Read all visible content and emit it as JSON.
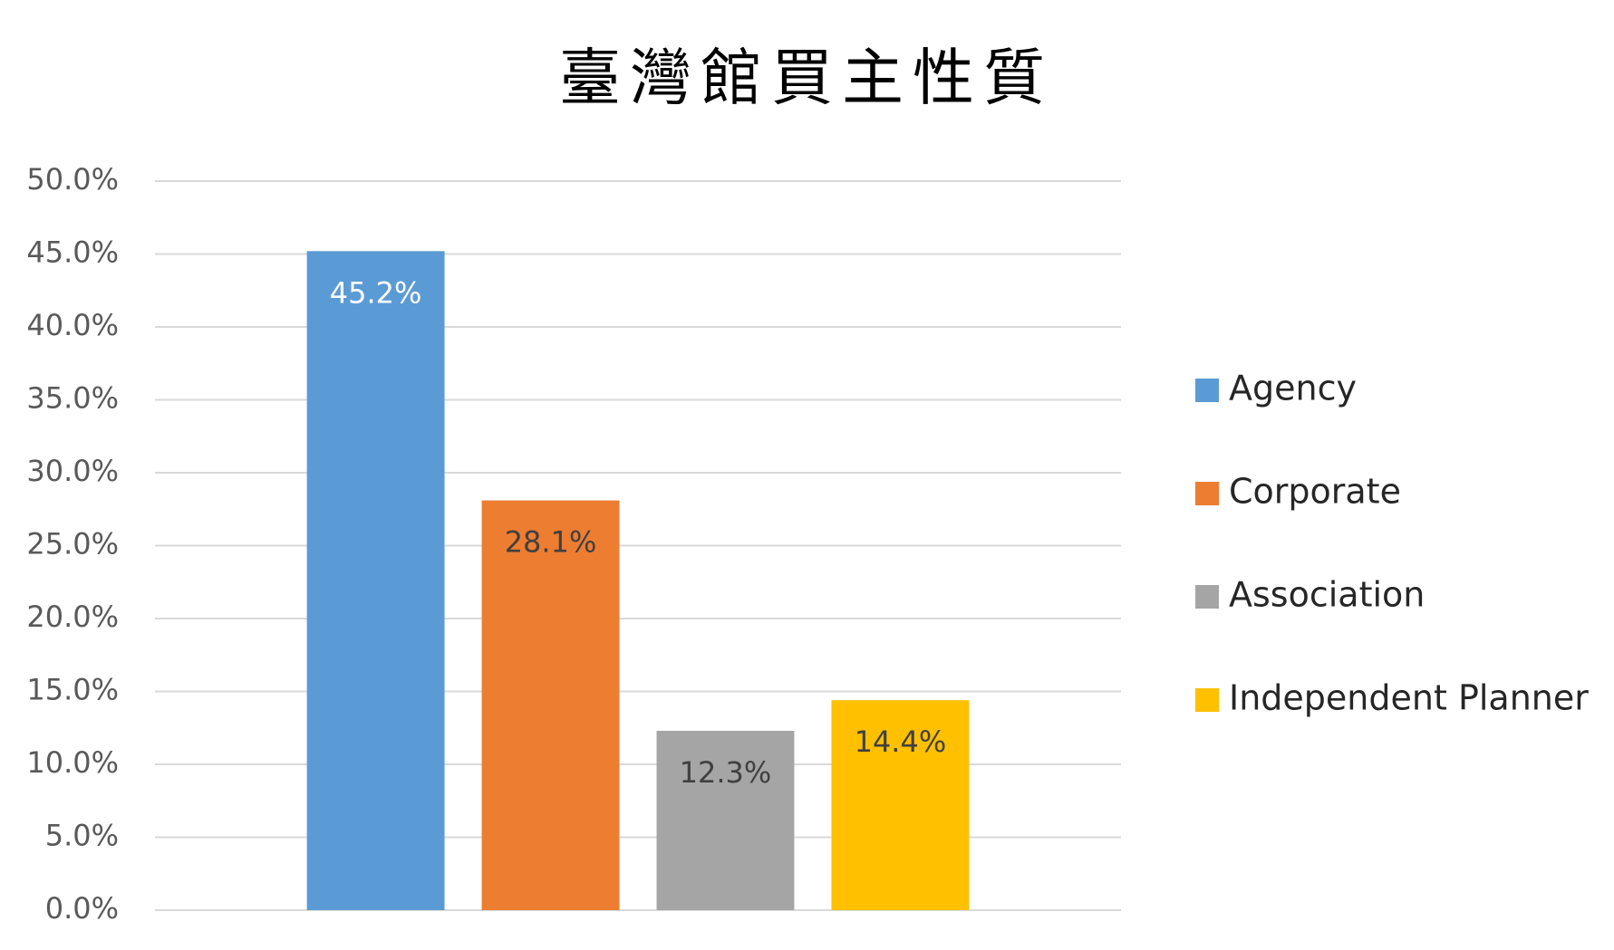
{
  "chart_data": {
    "type": "bar",
    "title": "臺灣館買主性質",
    "categories": [
      null
    ],
    "series": [
      {
        "name": "Agency",
        "color": "#5b9bd5",
        "label_color": "#ffffff",
        "values": [
          45.2
        ],
        "value_labels": [
          "45.2%"
        ]
      },
      {
        "name": "Corporate",
        "color": "#ed7d31",
        "label_color": "#404040",
        "values": [
          28.1
        ],
        "value_labels": [
          "28.1%"
        ]
      },
      {
        "name": "Association",
        "color": "#a5a5a5",
        "label_color": "#404040",
        "values": [
          12.3
        ],
        "value_labels": [
          "12.3%"
        ]
      },
      {
        "name": "Independent Planner",
        "color": "#ffc000",
        "label_color": "#404040",
        "values": [
          14.4
        ],
        "value_labels": [
          "14.4%"
        ]
      }
    ],
    "ylim": [
      0,
      50
    ],
    "yticks": [
      {
        "value": 0,
        "label": "0.0%"
      },
      {
        "value": 5,
        "label": "5.0%"
      },
      {
        "value": 10,
        "label": "10.0%"
      },
      {
        "value": 15,
        "label": "15.0%"
      },
      {
        "value": 20,
        "label": "20.0%"
      },
      {
        "value": 25,
        "label": "25.0%"
      },
      {
        "value": 30,
        "label": "30.0%"
      },
      {
        "value": 35,
        "label": "35.0%"
      },
      {
        "value": 40,
        "label": "40.0%"
      },
      {
        "value": 45,
        "label": "45.0%"
      },
      {
        "value": 50,
        "label": "50.0%"
      }
    ],
    "grid": true,
    "legend": "right"
  }
}
